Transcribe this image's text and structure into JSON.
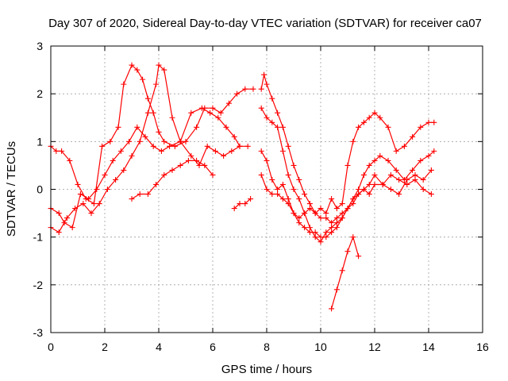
{
  "chart_data": {
    "type": "scatter",
    "title": "Day 307 of 2020, Sidereal Day-to-day VTEC variation (SDTVAR) for receiver ca07",
    "xlabel": "GPS time / hours",
    "ylabel": "SDTVAR / TECUs",
    "xlim": [
      0,
      16
    ],
    "ylim": [
      -3,
      3
    ],
    "x_ticks": [
      "0",
      "2",
      "4",
      "6",
      "8",
      "10",
      "12",
      "14",
      "16"
    ],
    "y_ticks": [
      "3",
      "2",
      "1",
      "0",
      "-1",
      "-2",
      "-3"
    ],
    "grid": true,
    "marker": "+",
    "color": "#ff0000",
    "series": [
      {
        "x": [
          0.0,
          0.3,
          0.5,
          0.8,
          1.1,
          1.4,
          1.7,
          2.0,
          2.3,
          2.6,
          2.9,
          3.2,
          3.5,
          3.8,
          4.1,
          4.4,
          4.8,
          5.2,
          5.6,
          5.9,
          6.2,
          6.5,
          6.8,
          7.0
        ],
        "y": [
          -0.4,
          -0.5,
          -0.7,
          -0.8,
          -0.1,
          -0.2,
          0.0,
          0.3,
          0.6,
          0.8,
          1.0,
          1.3,
          1.1,
          0.9,
          0.8,
          0.9,
          1.0,
          1.6,
          1.7,
          1.6,
          1.5,
          1.3,
          1.1,
          0.9
        ]
      },
      {
        "x": [
          0.0,
          0.2,
          0.4,
          0.7,
          1.0,
          1.3,
          1.6,
          1.9,
          2.2,
          2.5,
          2.7,
          3.0,
          3.2,
          3.4,
          3.6,
          3.8,
          4.0,
          4.2,
          4.6,
          5.0,
          5.4,
          5.7,
          6.0,
          6.3,
          6.6,
          6.9,
          7.2,
          7.5
        ],
        "y": [
          0.9,
          0.8,
          0.8,
          0.6,
          0.1,
          -0.2,
          -0.3,
          0.9,
          1.0,
          1.3,
          2.2,
          2.6,
          2.5,
          2.3,
          1.9,
          1.6,
          1.2,
          1.0,
          0.9,
          1.0,
          1.3,
          1.7,
          1.7,
          1.6,
          1.8,
          2.0,
          2.1,
          2.1
        ]
      },
      {
        "x": [
          0.0,
          0.3,
          0.6,
          0.9,
          1.2,
          1.5,
          1.8,
          2.1,
          2.4,
          2.7,
          3.0,
          3.3,
          3.6,
          3.9,
          4.0,
          4.2,
          4.5,
          4.8,
          5.2,
          5.5,
          5.8,
          6.1,
          6.4,
          6.7,
          7.0,
          7.3
        ],
        "y": [
          -0.8,
          -0.9,
          -0.6,
          -0.4,
          -0.3,
          -0.5,
          -0.3,
          0.0,
          0.2,
          0.4,
          0.7,
          1.0,
          1.6,
          2.2,
          2.6,
          2.5,
          1.5,
          1.0,
          0.7,
          0.5,
          0.9,
          0.8,
          0.7,
          0.8,
          0.9,
          0.9
        ]
      },
      {
        "x": [
          3.0,
          3.3,
          3.6,
          3.9,
          4.2,
          4.5,
          4.8,
          5.1,
          5.4,
          5.7,
          6.0
        ],
        "y": [
          -0.2,
          -0.1,
          -0.1,
          0.1,
          0.3,
          0.4,
          0.5,
          0.6,
          0.6,
          0.5,
          0.3
        ]
      },
      {
        "x": [
          6.8,
          7.0,
          7.2,
          7.4
        ],
        "y": [
          -0.4,
          -0.3,
          -0.3,
          -0.2
        ]
      },
      {
        "x": [
          7.8,
          7.9,
          8.0,
          8.2,
          8.4,
          8.6,
          8.8,
          9.0,
          9.2,
          9.4,
          9.6,
          9.8,
          10.0,
          10.2,
          10.4,
          10.6,
          10.8,
          11.0,
          11.2,
          11.4,
          11.6,
          11.8,
          12.0,
          12.2,
          12.5,
          12.8,
          13.1,
          13.4,
          13.7,
          14.0,
          14.2
        ],
        "y": [
          2.1,
          2.4,
          2.2,
          1.9,
          1.6,
          1.3,
          0.9,
          0.5,
          0.2,
          -0.1,
          -0.3,
          -0.5,
          -0.4,
          -0.5,
          -0.2,
          -0.4,
          -0.3,
          0.5,
          1.0,
          1.3,
          1.4,
          1.5,
          1.6,
          1.5,
          1.3,
          0.8,
          0.9,
          1.1,
          1.3,
          1.4,
          1.4
        ]
      },
      {
        "x": [
          7.8,
          8.0,
          8.2,
          8.4,
          8.6,
          8.8,
          9.0,
          9.2,
          9.4,
          9.6,
          9.8,
          10.0,
          10.2,
          10.4,
          10.6,
          10.8,
          11.0,
          11.2,
          11.4,
          11.6,
          11.8,
          12.0,
          12.2,
          12.5,
          12.8,
          13.1,
          13.4,
          13.7,
          14.0,
          14.2
        ],
        "y": [
          1.7,
          1.5,
          1.4,
          1.3,
          0.8,
          0.3,
          0.0,
          -0.2,
          -0.5,
          -0.8,
          -1.0,
          -1.1,
          -0.9,
          -0.8,
          -0.7,
          -0.6,
          -0.4,
          -0.2,
          0.0,
          0.3,
          0.5,
          0.6,
          0.7,
          0.6,
          0.4,
          0.2,
          0.4,
          0.6,
          0.7,
          0.8
        ]
      },
      {
        "x": [
          7.8,
          8.0,
          8.2,
          8.4,
          8.6,
          8.8,
          9.0,
          9.2,
          9.4,
          9.6,
          9.8,
          10.0,
          10.2,
          10.4,
          10.6,
          10.8,
          11.0,
          11.2,
          11.4,
          11.6,
          11.8,
          12.0,
          12.3,
          12.6,
          12.9,
          13.2,
          13.5,
          13.8,
          14.1
        ],
        "y": [
          0.8,
          0.6,
          0.2,
          0.0,
          0.1,
          -0.2,
          -0.5,
          -0.7,
          -0.8,
          -0.9,
          -0.9,
          -1.0,
          -1.0,
          -0.9,
          -0.8,
          -0.6,
          -0.4,
          -0.3,
          -0.1,
          0.0,
          -0.1,
          0.1,
          0.1,
          0.0,
          -0.1,
          0.2,
          0.3,
          0.2,
          0.4
        ]
      },
      {
        "x": [
          7.8,
          8.0,
          8.2,
          8.4,
          8.6,
          8.8,
          9.0,
          9.2,
          9.4,
          9.6,
          9.8,
          10.0,
          10.2,
          10.4,
          10.6,
          10.8,
          11.0,
          11.2,
          11.4,
          11.6,
          11.8,
          12.0,
          12.3,
          12.6,
          12.9,
          13.2,
          13.5,
          13.8,
          14.1
        ],
        "y": [
          0.3,
          0.0,
          -0.1,
          -0.1,
          -0.2,
          -0.3,
          -0.5,
          -0.6,
          -0.5,
          -0.4,
          -0.5,
          -0.6,
          -0.6,
          -0.7,
          -0.6,
          -0.5,
          -0.4,
          -0.2,
          -0.1,
          0.0,
          0.1,
          0.3,
          0.1,
          0.3,
          0.2,
          0.1,
          0.2,
          0.0,
          -0.1
        ]
      },
      {
        "x": [
          10.4,
          10.6,
          10.8,
          11.0,
          11.2,
          11.4
        ],
        "y": [
          -2.5,
          -2.1,
          -1.7,
          -1.3,
          -1.0,
          -1.4
        ]
      }
    ]
  }
}
